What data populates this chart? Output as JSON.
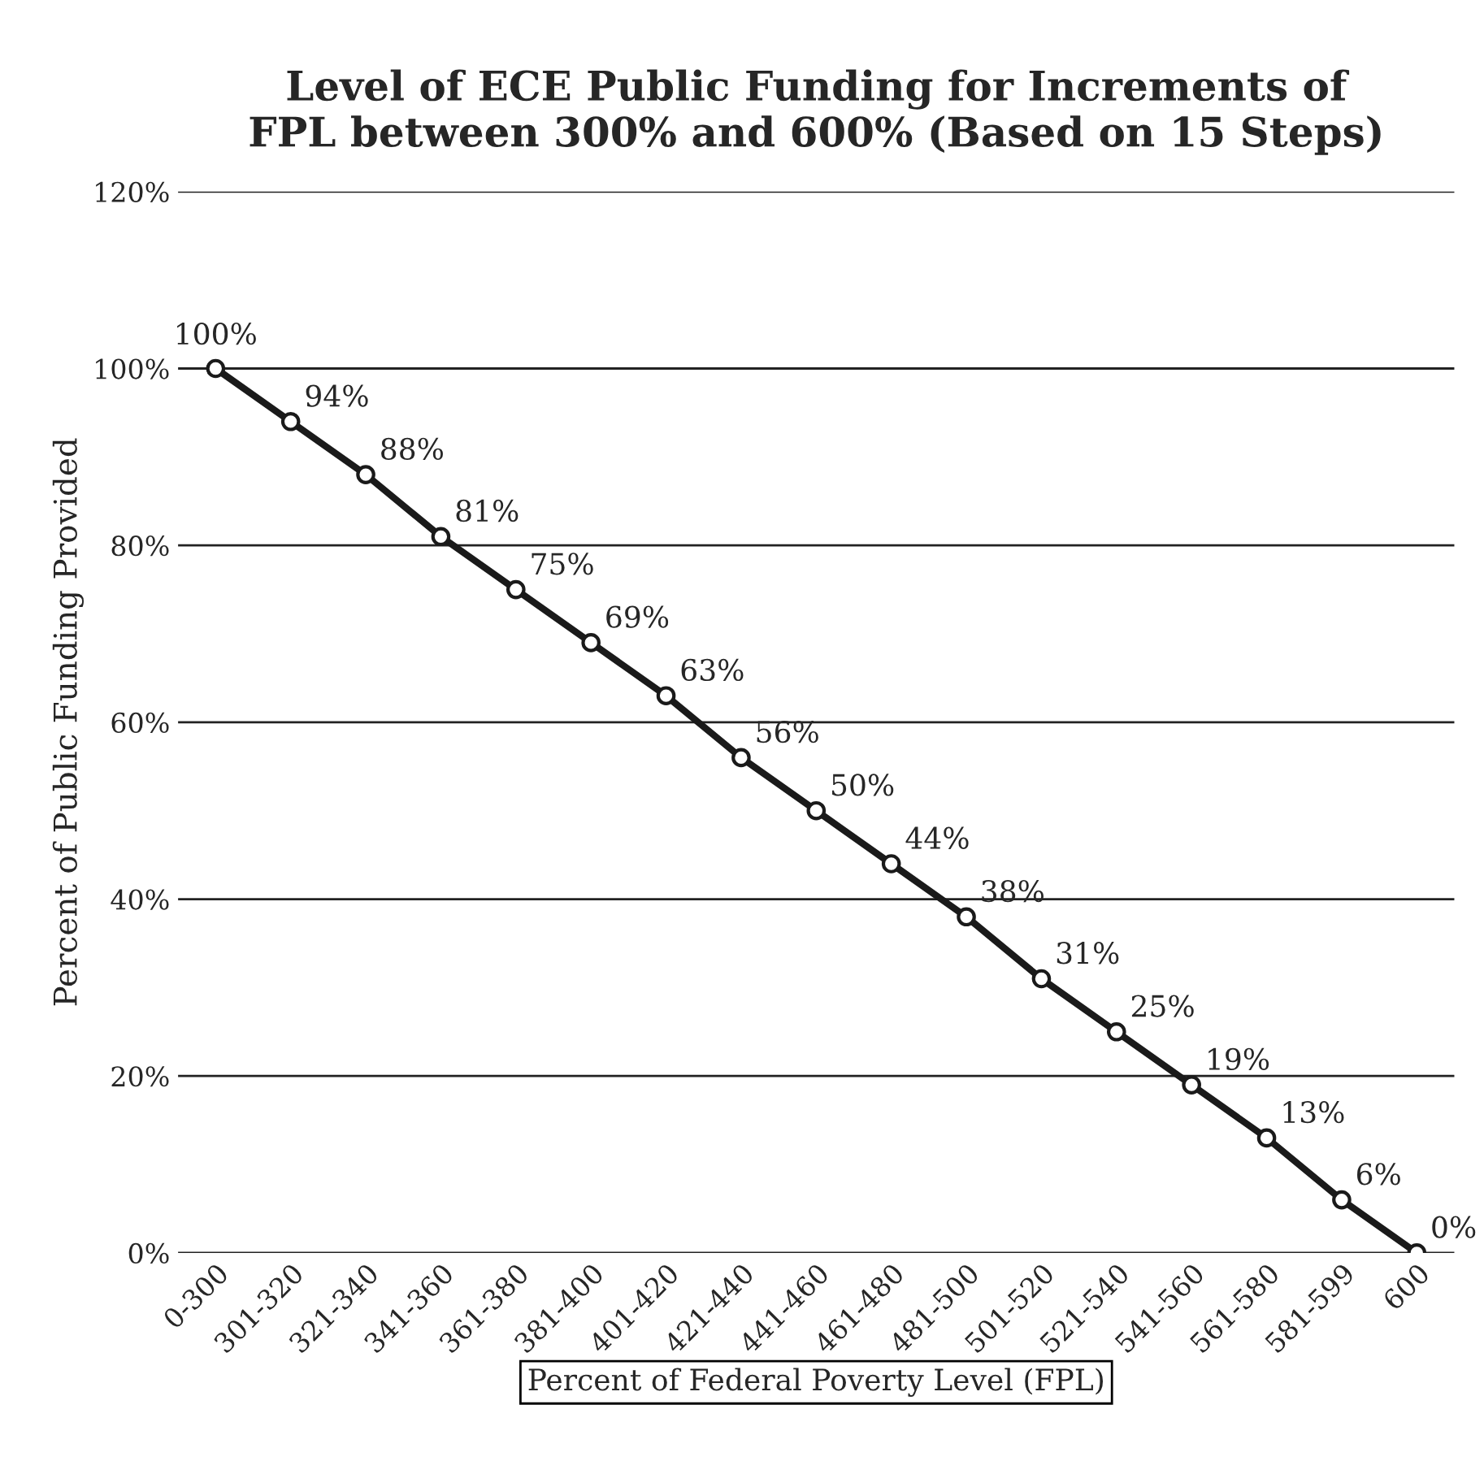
{
  "chart_data": {
    "type": "line",
    "title": "Level of ECE Public Funding for Increments of\nFPL between 300% and 600% (Based on 15 Steps)",
    "xlabel": "Percent of Federal Poverty Level (FPL)",
    "ylabel": "Percent of Public Funding Provided",
    "categories": [
      "0-300",
      "301-320",
      "321-340",
      "341-360",
      "361-380",
      "381-400",
      "401-420",
      "421-440",
      "441-460",
      "461-480",
      "481-500",
      "501-520",
      "521-540",
      "541-560",
      "561-580",
      "581-599",
      "600"
    ],
    "series": [
      {
        "color": "#1a1a1a",
        "values": [
          100,
          94,
          88,
          81,
          75,
          69,
          63,
          56,
          50,
          44,
          38,
          31,
          25,
          19,
          13,
          6,
          0
        ],
        "value_labels": [
          "100%",
          "94%",
          "88%",
          "81%",
          "75%",
          "69%",
          "63%",
          "56%",
          "50%",
          "44%",
          "38%",
          "31%",
          "25%",
          "19%",
          "13%",
          "6%",
          "0%"
        ]
      }
    ],
    "ylim": [
      0,
      120
    ],
    "yticks": [
      {
        "value": 0,
        "label": "0%"
      },
      {
        "value": 20,
        "label": "20%"
      },
      {
        "value": 40,
        "label": "40%"
      },
      {
        "value": 60,
        "label": "60%"
      },
      {
        "value": 80,
        "label": "80%"
      },
      {
        "value": 100,
        "label": "100%"
      },
      {
        "value": 120,
        "label": "120%"
      }
    ],
    "grid": "y",
    "marker": "circle",
    "line_style": "solid"
  }
}
